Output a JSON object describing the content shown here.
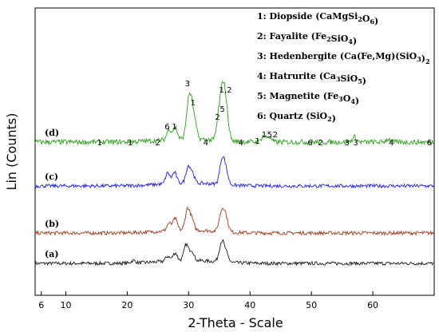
{
  "chart_data": {
    "type": "line",
    "xlabel": "2-Theta - Scale",
    "ylabel": "Lin (Counts)",
    "xlim": [
      5,
      70
    ],
    "x_ticks": [
      6,
      10,
      20,
      30,
      40,
      50,
      60
    ],
    "grid": false,
    "colors": {
      "a": "#1a1a1a",
      "b": "#9c3a1e",
      "c": "#1f1fd6",
      "d": "#2f9e1f"
    },
    "series": [
      {
        "name": "(a)",
        "color_key": "a",
        "baseline": 0.0,
        "noise": 0.035,
        "peaks": [
          [
            21,
            0.05
          ],
          [
            26.6,
            0.1
          ],
          [
            27.8,
            0.16
          ],
          [
            29.6,
            0.32
          ],
          [
            30.5,
            0.2
          ],
          [
            35.2,
            0.22
          ],
          [
            35.6,
            0.27
          ],
          [
            36.2,
            0.14
          ]
        ]
      },
      {
        "name": "(b)",
        "color_key": "b",
        "baseline": 0.95,
        "noise": 0.035,
        "peaks": [
          [
            26.8,
            0.15
          ],
          [
            27.8,
            0.24
          ],
          [
            29.8,
            0.42
          ],
          [
            30.5,
            0.22
          ],
          [
            35.2,
            0.25
          ],
          [
            35.7,
            0.33
          ],
          [
            36.2,
            0.18
          ]
        ]
      },
      {
        "name": "(c)",
        "color_key": "c",
        "baseline": 1.95,
        "noise": 0.035,
        "peaks": [
          [
            26.6,
            0.22
          ],
          [
            27.7,
            0.22
          ],
          [
            29.9,
            0.32
          ],
          [
            30.6,
            0.2
          ],
          [
            35.3,
            0.3
          ],
          [
            35.7,
            0.34
          ],
          [
            36.2,
            0.18
          ]
        ]
      },
      {
        "name": "(d)",
        "color_key": "d",
        "baseline": 2.95,
        "noise": 0.05,
        "peaks": [
          [
            26.8,
            0.22
          ],
          [
            27.8,
            0.25
          ],
          [
            29.9,
            0.55
          ],
          [
            30.4,
            0.62
          ],
          [
            31.0,
            0.3
          ],
          [
            34.9,
            0.42
          ],
          [
            35.4,
            0.58
          ],
          [
            35.8,
            0.72
          ],
          [
            36.3,
            0.35
          ],
          [
            42.2,
            0.12
          ],
          [
            43.1,
            0.1
          ],
          [
            57.0,
            0.1
          ],
          [
            62.5,
            0.06
          ]
        ]
      }
    ],
    "peak_labels": [
      {
        "text": "1",
        "x": 15.5
      },
      {
        "text": "1",
        "x": 20.5
      },
      {
        "text": "2",
        "x": 25.0
      },
      {
        "text": "6",
        "x": 26.5
      },
      {
        "text": "1",
        "x": 27.7
      },
      {
        "text": "3",
        "x": 29.8
      },
      {
        "text": "1",
        "x": 30.7
      },
      {
        "text": "4",
        "x": 32.8
      },
      {
        "text": "2",
        "x": 34.7
      },
      {
        "text": "5",
        "x": 35.5
      },
      {
        "text": "1,2",
        "x": 36.0
      },
      {
        "text": "4",
        "x": 38.5
      },
      {
        "text": "1",
        "x": 41.2
      },
      {
        "text": "1",
        "x": 42.3
      },
      {
        "text": "5",
        "x": 43.2
      },
      {
        "text": "2",
        "x": 44.1
      },
      {
        "text": "6",
        "x": 49.8
      },
      {
        "text": "2",
        "x": 51.5
      },
      {
        "text": "3",
        "x": 55.8
      },
      {
        "text": "3",
        "x": 57.2
      },
      {
        "text": "4",
        "x": 63.0
      },
      {
        "text": "6",
        "x": 69.2
      }
    ],
    "legend": {
      "placement": "top-right",
      "entries": [
        {
          "num": "1:",
          "name": "Diopside",
          "formula": [
            [
              "(CaMgSi",
              false
            ],
            [
              "2",
              true
            ],
            [
              "O",
              false
            ],
            [
              "6",
              true
            ],
            [
              ")",
              false
            ]
          ]
        },
        {
          "num": "2:",
          "name": "Fayalite",
          "formula": [
            [
              "(Fe",
              false
            ],
            [
              "2",
              true
            ],
            [
              "SiO",
              false
            ],
            [
              "4",
              true
            ],
            [
              ")",
              false
            ]
          ]
        },
        {
          "num": "3:",
          "name": "Hedenbergite",
          "formula": [
            [
              "(Ca(Fe,Mg)(SiO",
              false
            ],
            [
              "3",
              true
            ],
            [
              ")",
              false
            ],
            [
              "2",
              true
            ]
          ]
        },
        {
          "num": "4:",
          "name": "Hatrurite",
          "formula": [
            [
              "(Ca",
              false
            ],
            [
              "3",
              true
            ],
            [
              "SiO",
              false
            ],
            [
              "5",
              true
            ],
            [
              ")",
              false
            ]
          ]
        },
        {
          "num": "5:",
          "name": "Magnetite",
          "formula": [
            [
              "(Fe",
              false
            ],
            [
              "3",
              true
            ],
            [
              "O",
              false
            ],
            [
              "4",
              true
            ],
            [
              ")",
              false
            ]
          ]
        },
        {
          "num": "6:",
          "name": "Quartz",
          "formula": [
            [
              "(SiO",
              false
            ],
            [
              "2",
              true
            ],
            [
              ")",
              false
            ]
          ]
        }
      ]
    }
  }
}
